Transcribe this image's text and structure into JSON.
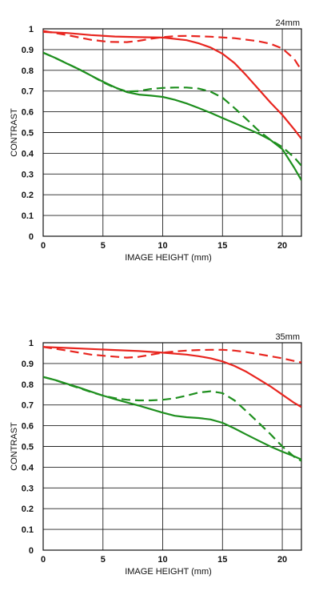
{
  "chart_data": [
    {
      "type": "line",
      "focal_label": "24mm",
      "xlabel": "IMAGE HEIGHT (mm)",
      "ylabel": "CONTRAST",
      "xlim": [
        0,
        21.6
      ],
      "ylim": [
        0,
        1
      ],
      "xticks": [
        0,
        5,
        10,
        15,
        20
      ],
      "yticks": [
        0,
        0.1,
        0.2,
        0.3,
        0.4,
        0.5,
        0.6,
        0.7,
        0.8,
        0.9,
        1
      ],
      "grid": true,
      "series": [
        {
          "color": "#e8251f",
          "style": "solid",
          "x": [
            0,
            2,
            4,
            6,
            8,
            10,
            12,
            13,
            14,
            15,
            16,
            17,
            18,
            19,
            20,
            21,
            21.6
          ],
          "y": [
            0.985,
            0.98,
            0.97,
            0.963,
            0.96,
            0.958,
            0.945,
            0.93,
            0.91,
            0.88,
            0.835,
            0.775,
            0.71,
            0.645,
            0.585,
            0.515,
            0.47
          ]
        },
        {
          "color": "#e8251f",
          "style": "dashed",
          "x": [
            0,
            2,
            4,
            5.5,
            7,
            8,
            9,
            10,
            11,
            12,
            14,
            16,
            18,
            19,
            20,
            21,
            21.6
          ],
          "y": [
            0.99,
            0.97,
            0.947,
            0.937,
            0.936,
            0.942,
            0.952,
            0.96,
            0.965,
            0.966,
            0.962,
            0.955,
            0.94,
            0.928,
            0.905,
            0.855,
            0.8
          ]
        },
        {
          "color": "#1e8f1e",
          "style": "solid",
          "x": [
            0,
            1,
            2,
            3,
            4,
            5,
            6,
            7,
            8,
            9,
            10,
            11,
            12,
            13,
            14,
            15,
            16,
            17,
            18,
            19,
            20,
            21,
            21.6
          ],
          "y": [
            0.885,
            0.86,
            0.832,
            0.805,
            0.775,
            0.745,
            0.718,
            0.695,
            0.683,
            0.678,
            0.672,
            0.658,
            0.64,
            0.618,
            0.595,
            0.57,
            0.545,
            0.52,
            0.495,
            0.465,
            0.42,
            0.33,
            0.27
          ]
        },
        {
          "color": "#1e8f1e",
          "style": "dashed",
          "x": [
            0,
            1,
            2,
            3,
            4,
            5,
            6,
            7,
            8,
            9,
            10,
            11,
            12,
            13,
            14,
            15,
            16,
            17,
            18,
            19,
            20,
            21,
            21.6
          ],
          "y": [
            0.885,
            0.86,
            0.833,
            0.805,
            0.775,
            0.742,
            0.716,
            0.698,
            0.7,
            0.71,
            0.715,
            0.717,
            0.717,
            0.712,
            0.697,
            0.668,
            0.618,
            0.565,
            0.51,
            0.465,
            0.43,
            0.38,
            0.34
          ]
        }
      ]
    },
    {
      "type": "line",
      "focal_label": "35mm",
      "xlabel": "IMAGE HEIGHT (mm)",
      "ylabel": "CONTRAST",
      "xlim": [
        0,
        21.6
      ],
      "ylim": [
        0,
        1
      ],
      "xticks": [
        0,
        5,
        10,
        15,
        20
      ],
      "yticks": [
        0,
        0.1,
        0.2,
        0.3,
        0.4,
        0.5,
        0.6,
        0.7,
        0.8,
        0.9,
        1
      ],
      "grid": true,
      "series": [
        {
          "color": "#e8251f",
          "style": "solid",
          "x": [
            0,
            2,
            4,
            6,
            8,
            10,
            12,
            13,
            14,
            15,
            16,
            17,
            18,
            19,
            20,
            21,
            21.6
          ],
          "y": [
            0.98,
            0.975,
            0.97,
            0.965,
            0.96,
            0.952,
            0.943,
            0.935,
            0.925,
            0.91,
            0.888,
            0.86,
            0.825,
            0.79,
            0.75,
            0.71,
            0.69
          ]
        },
        {
          "color": "#e8251f",
          "style": "dashed",
          "x": [
            0,
            2,
            4,
            5.5,
            7,
            8,
            9,
            10,
            11,
            12,
            13,
            14,
            15,
            16,
            17,
            18,
            19,
            20,
            21,
            21.6
          ],
          "y": [
            0.98,
            0.962,
            0.943,
            0.935,
            0.928,
            0.932,
            0.942,
            0.952,
            0.958,
            0.962,
            0.965,
            0.966,
            0.966,
            0.962,
            0.955,
            0.945,
            0.935,
            0.925,
            0.912,
            0.905
          ]
        },
        {
          "color": "#1e8f1e",
          "style": "solid",
          "x": [
            0,
            1,
            2,
            3,
            4,
            5,
            6,
            7,
            8,
            9,
            10,
            11,
            12,
            13,
            14,
            15,
            16,
            17,
            18,
            19,
            20,
            21,
            21.6
          ],
          "y": [
            0.835,
            0.82,
            0.802,
            0.784,
            0.764,
            0.745,
            0.728,
            0.712,
            0.697,
            0.68,
            0.663,
            0.648,
            0.641,
            0.637,
            0.63,
            0.614,
            0.587,
            0.557,
            0.528,
            0.5,
            0.475,
            0.452,
            0.437
          ]
        },
        {
          "color": "#1e8f1e",
          "style": "dashed",
          "x": [
            0,
            1,
            2,
            3,
            4,
            5,
            6,
            7,
            8,
            9,
            10,
            11,
            12,
            13,
            14,
            15,
            16,
            17,
            18,
            19,
            20,
            21,
            21.6
          ],
          "y": [
            0.835,
            0.82,
            0.8,
            0.782,
            0.762,
            0.745,
            0.733,
            0.725,
            0.722,
            0.722,
            0.725,
            0.732,
            0.745,
            0.76,
            0.766,
            0.757,
            0.722,
            0.67,
            0.615,
            0.56,
            0.5,
            0.45,
            0.43
          ]
        }
      ]
    }
  ]
}
